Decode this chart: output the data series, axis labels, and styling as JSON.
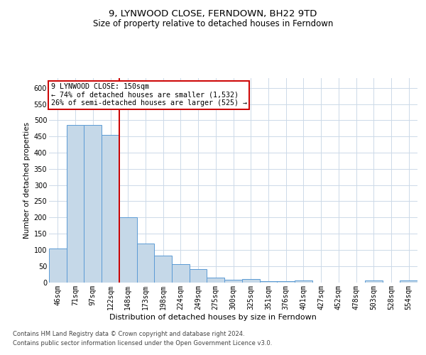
{
  "title": "9, LYNWOOD CLOSE, FERNDOWN, BH22 9TD",
  "subtitle": "Size of property relative to detached houses in Ferndown",
  "xlabel": "Distribution of detached houses by size in Ferndown",
  "ylabel": "Number of detached properties",
  "categories": [
    "46sqm",
    "71sqm",
    "97sqm",
    "122sqm",
    "148sqm",
    "173sqm",
    "198sqm",
    "224sqm",
    "249sqm",
    "275sqm",
    "300sqm",
    "325sqm",
    "351sqm",
    "376sqm",
    "401sqm",
    "427sqm",
    "452sqm",
    "478sqm",
    "503sqm",
    "528sqm",
    "554sqm"
  ],
  "values": [
    105,
    485,
    485,
    455,
    200,
    120,
    82,
    56,
    40,
    14,
    8,
    10,
    3,
    3,
    6,
    0,
    0,
    0,
    6,
    0,
    6
  ],
  "bar_color": "#c5d8e8",
  "bar_edge_color": "#5b9bd5",
  "highlight_line_index": 4,
  "highlight_color": "#cc0000",
  "annotation_text": "9 LYNWOOD CLOSE: 150sqm\n← 74% of detached houses are smaller (1,532)\n26% of semi-detached houses are larger (525) →",
  "annotation_box_color": "#ffffff",
  "annotation_box_edge": "#cc0000",
  "ylim": [
    0,
    630
  ],
  "yticks": [
    0,
    50,
    100,
    150,
    200,
    250,
    300,
    350,
    400,
    450,
    500,
    550,
    600
  ],
  "footer_line1": "Contains HM Land Registry data © Crown copyright and database right 2024.",
  "footer_line2": "Contains public sector information licensed under the Open Government Licence v3.0.",
  "background_color": "#ffffff",
  "grid_color": "#ccd9e8",
  "title_fontsize": 9.5,
  "subtitle_fontsize": 8.5,
  "ylabel_fontsize": 7.5,
  "tick_fontsize": 7,
  "annotation_fontsize": 7.2,
  "footer_fontsize": 6
}
